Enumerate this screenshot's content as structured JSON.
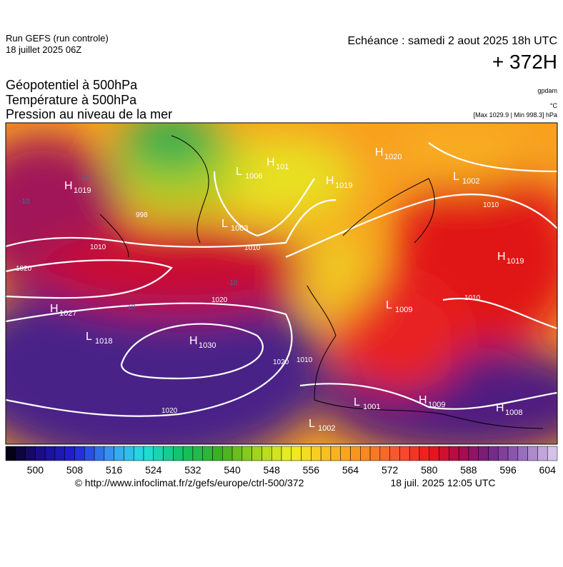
{
  "header": {
    "run": "Run GEFS (run controle)",
    "run_date": "18 juillet 2025 06Z",
    "echeance": "Echéance : samedi 2 aout 2025 18h UTC",
    "lead": "+ 372H"
  },
  "titles": [
    "Géopotentiel à 500hPa",
    "Température à 500hPa",
    "Pression au niveau de la mer"
  ],
  "units": [
    "gpdam",
    "°C",
    "[Max 1029.9 | Min 998.3] hPa"
  ],
  "centers": [
    {
      "kind": "H",
      "value": 1019
    },
    {
      "kind": "L",
      "value": 1006
    },
    {
      "kind": "H",
      "value": 101
    },
    {
      "kind": "H",
      "value": 1019
    },
    {
      "kind": "H",
      "value": 1020
    },
    {
      "kind": "L",
      "value": 1002
    },
    {
      "kind": "L",
      "value": 1003
    },
    {
      "kind": "H",
      "value": 1019
    },
    {
      "kind": "H",
      "value": 1027
    },
    {
      "kind": "L",
      "value": 1018
    },
    {
      "kind": "H",
      "value": 1030
    },
    {
      "kind": "L",
      "value": 1009
    },
    {
      "kind": "L",
      "value": 1001
    },
    {
      "kind": "H",
      "value": 1009
    },
    {
      "kind": "H",
      "value": 1008
    },
    {
      "kind": "L",
      "value": 1002
    }
  ],
  "isobar_labels": [
    998,
    1010,
    1010,
    1020,
    1020,
    1020,
    1010,
    1020,
    1010,
    1010
  ],
  "temperature_labels": [
    -20,
    -10,
    -10,
    -10
  ],
  "colorbar": {
    "range": [
      494,
      606
    ],
    "step": 2,
    "labels": [
      500,
      508,
      516,
      524,
      532,
      540,
      548,
      556,
      564,
      572,
      580,
      588,
      596,
      604
    ],
    "stops": [
      [
        494,
        "#000000"
      ],
      [
        500,
        "#1a0a7a"
      ],
      [
        508,
        "#2020d8"
      ],
      [
        516,
        "#3aa0f0"
      ],
      [
        522,
        "#20e0e0"
      ],
      [
        530,
        "#10c060"
      ],
      [
        538,
        "#40b020"
      ],
      [
        546,
        "#b0d820"
      ],
      [
        552,
        "#f0f020"
      ],
      [
        558,
        "#f8c820"
      ],
      [
        566,
        "#f89020"
      ],
      [
        574,
        "#f85030"
      ],
      [
        580,
        "#f01818"
      ],
      [
        586,
        "#b00848"
      ],
      [
        592,
        "#702080"
      ],
      [
        598,
        "#9060b8"
      ],
      [
        606,
        "#e0d0f0"
      ]
    ]
  },
  "footer": {
    "source": "© http://www.infoclimat.fr/z/gefs/europe/ctrl-500/372",
    "generated": "18 juil. 2025 12:05 UTC"
  }
}
